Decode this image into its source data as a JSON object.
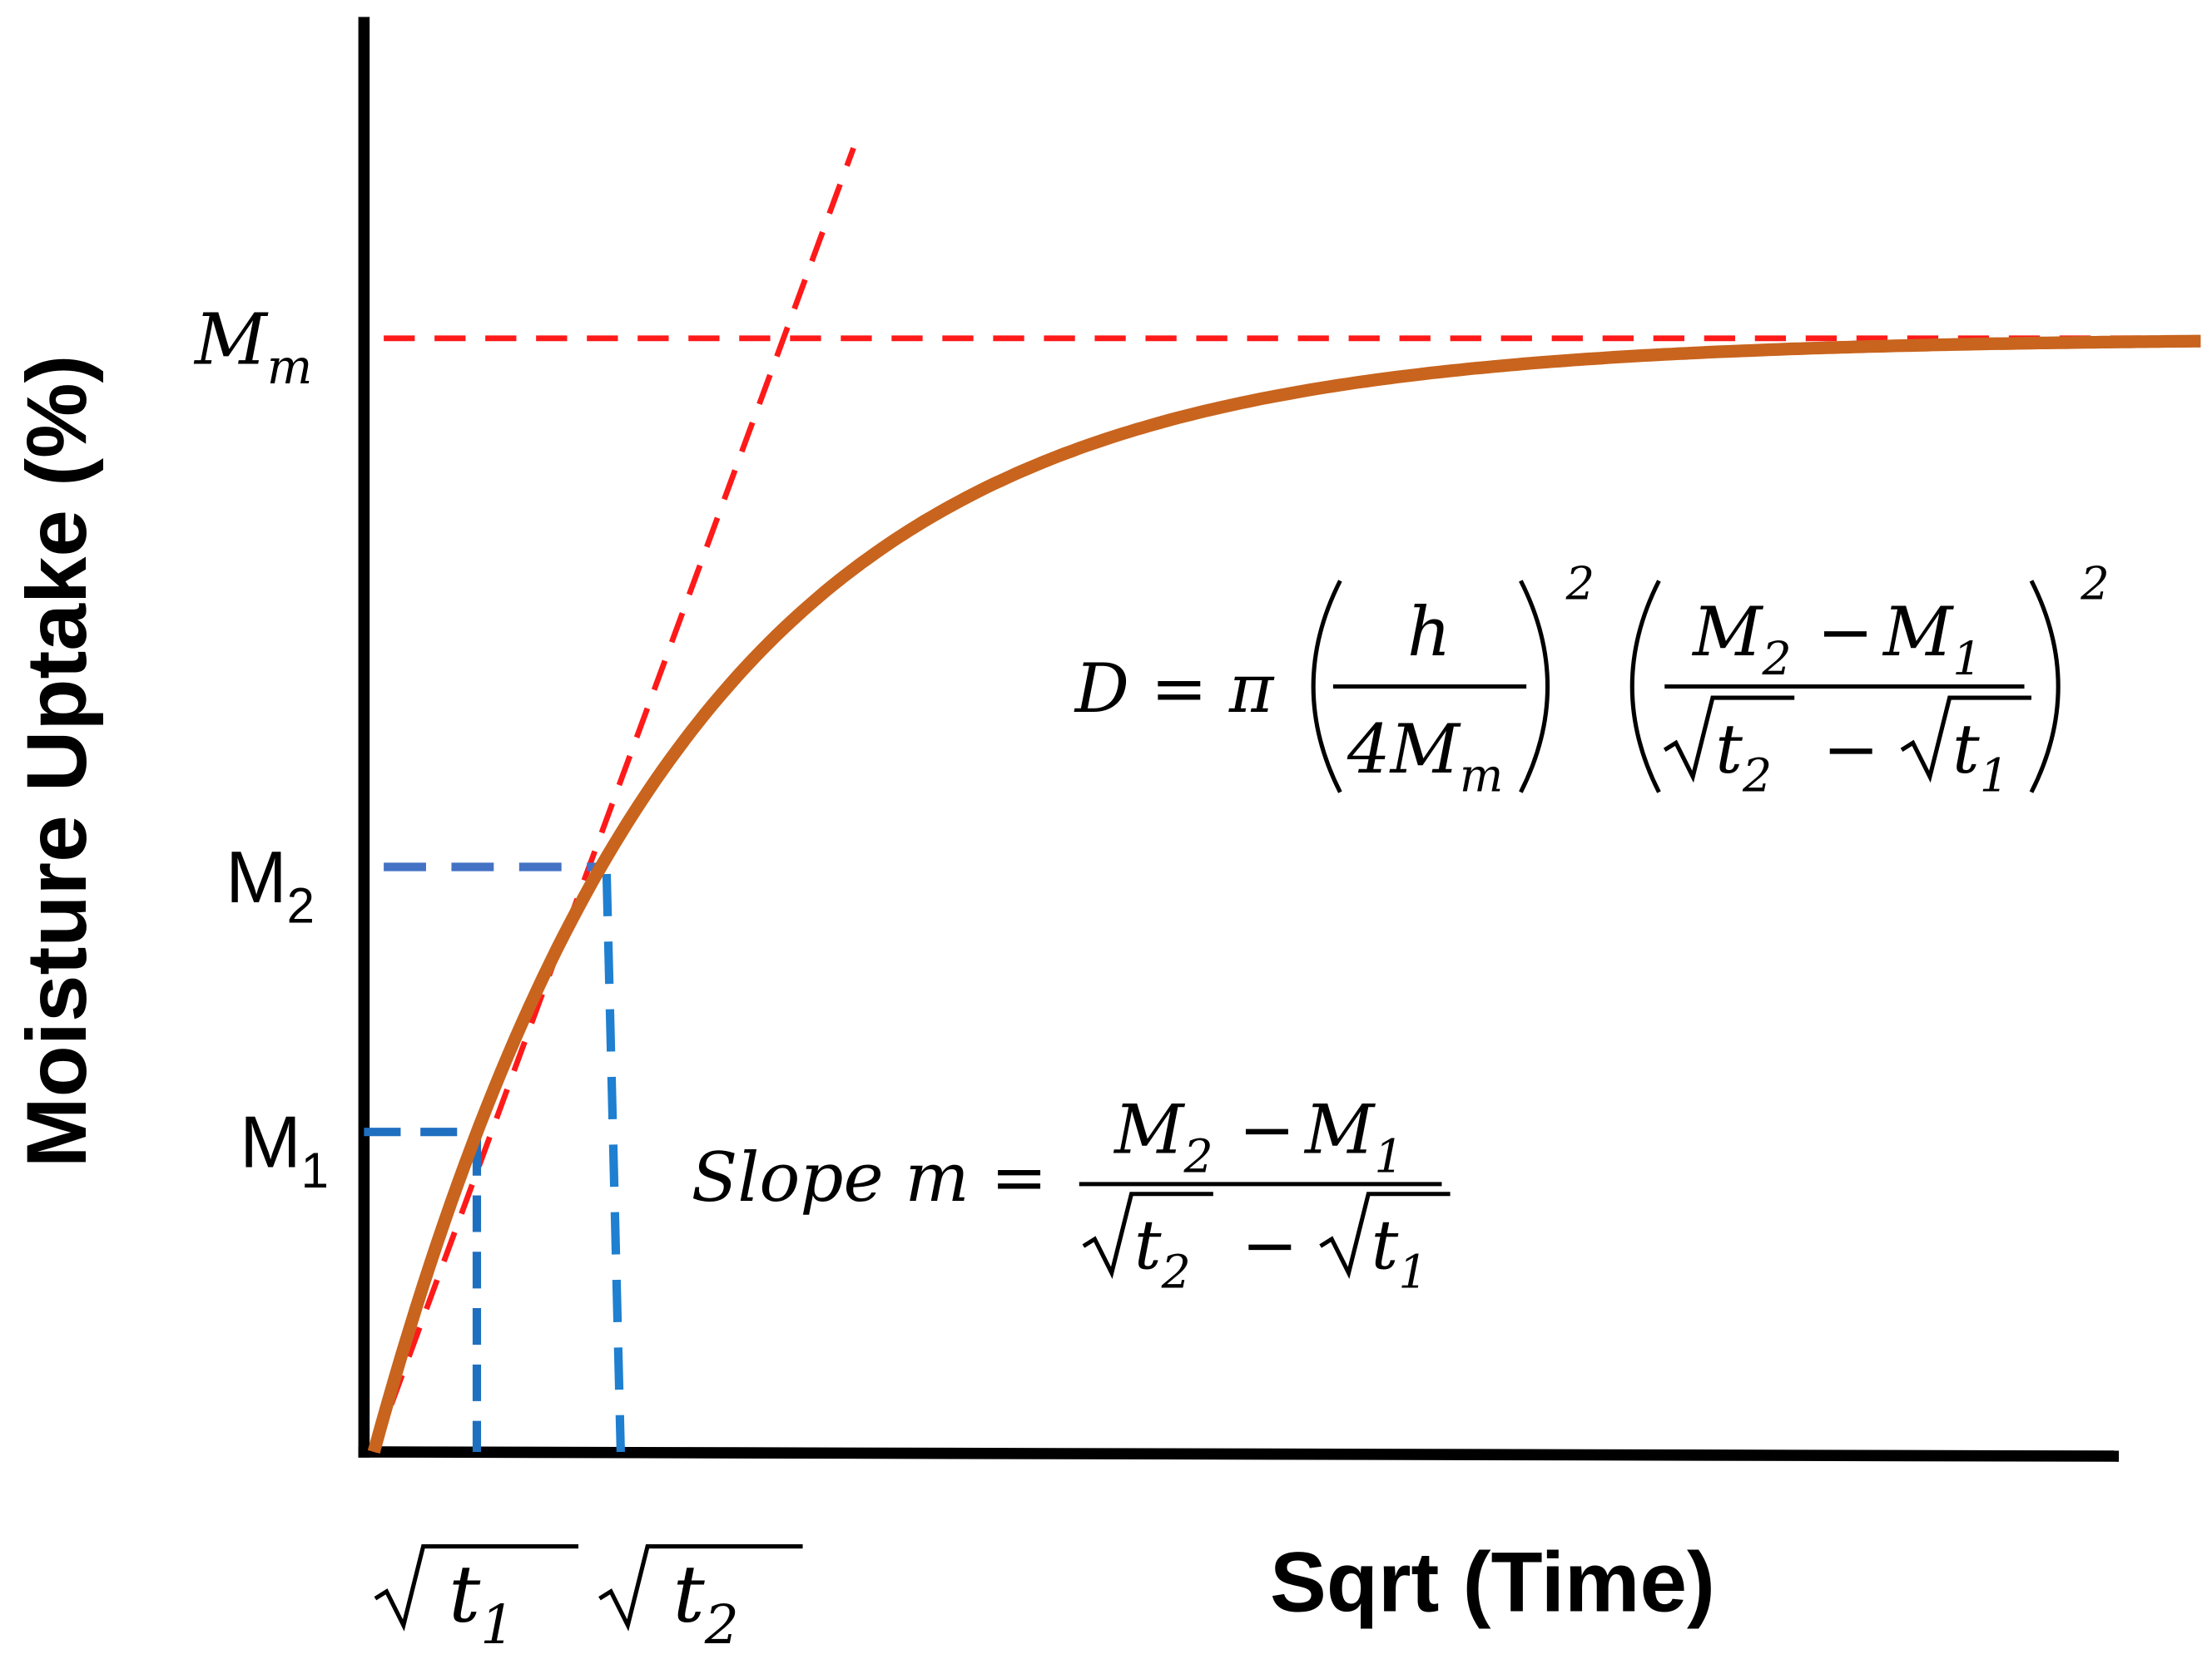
{
  "axes": {
    "y_title": "Moisture Uptake (%)",
    "x_title": "Sqrt (Time)"
  },
  "y_labels": [
    {
      "base": "M",
      "sub": "m"
    },
    {
      "base": "M",
      "sub": "2"
    },
    {
      "base": "M",
      "sub": "1"
    }
  ],
  "x_labels": [
    {
      "base": "t",
      "sub": "1"
    },
    {
      "base": "t",
      "sub": "2"
    }
  ],
  "formula_d": {
    "lhs": "D = π",
    "num1": "h",
    "den1": {
      "base": "4M",
      "sub": "m"
    },
    "exp1": "2",
    "num2": {
      "a": "M",
      "a_sub": "2",
      "op": "−",
      "b": "M",
      "b_sub": "1"
    },
    "den2": {
      "a": "t",
      "a_sub": "2",
      "op": "−",
      "b": "t",
      "b_sub": "1"
    },
    "exp2": "2"
  },
  "formula_slope": {
    "lhs": "Slope m =",
    "num": {
      "a": "M",
      "a_sub": "2",
      "op": "−",
      "b": "M",
      "b_sub": "1"
    },
    "den": {
      "a": "t",
      "a_sub": "2",
      "op": "−",
      "b": "t",
      "b_sub": "1"
    }
  }
}
